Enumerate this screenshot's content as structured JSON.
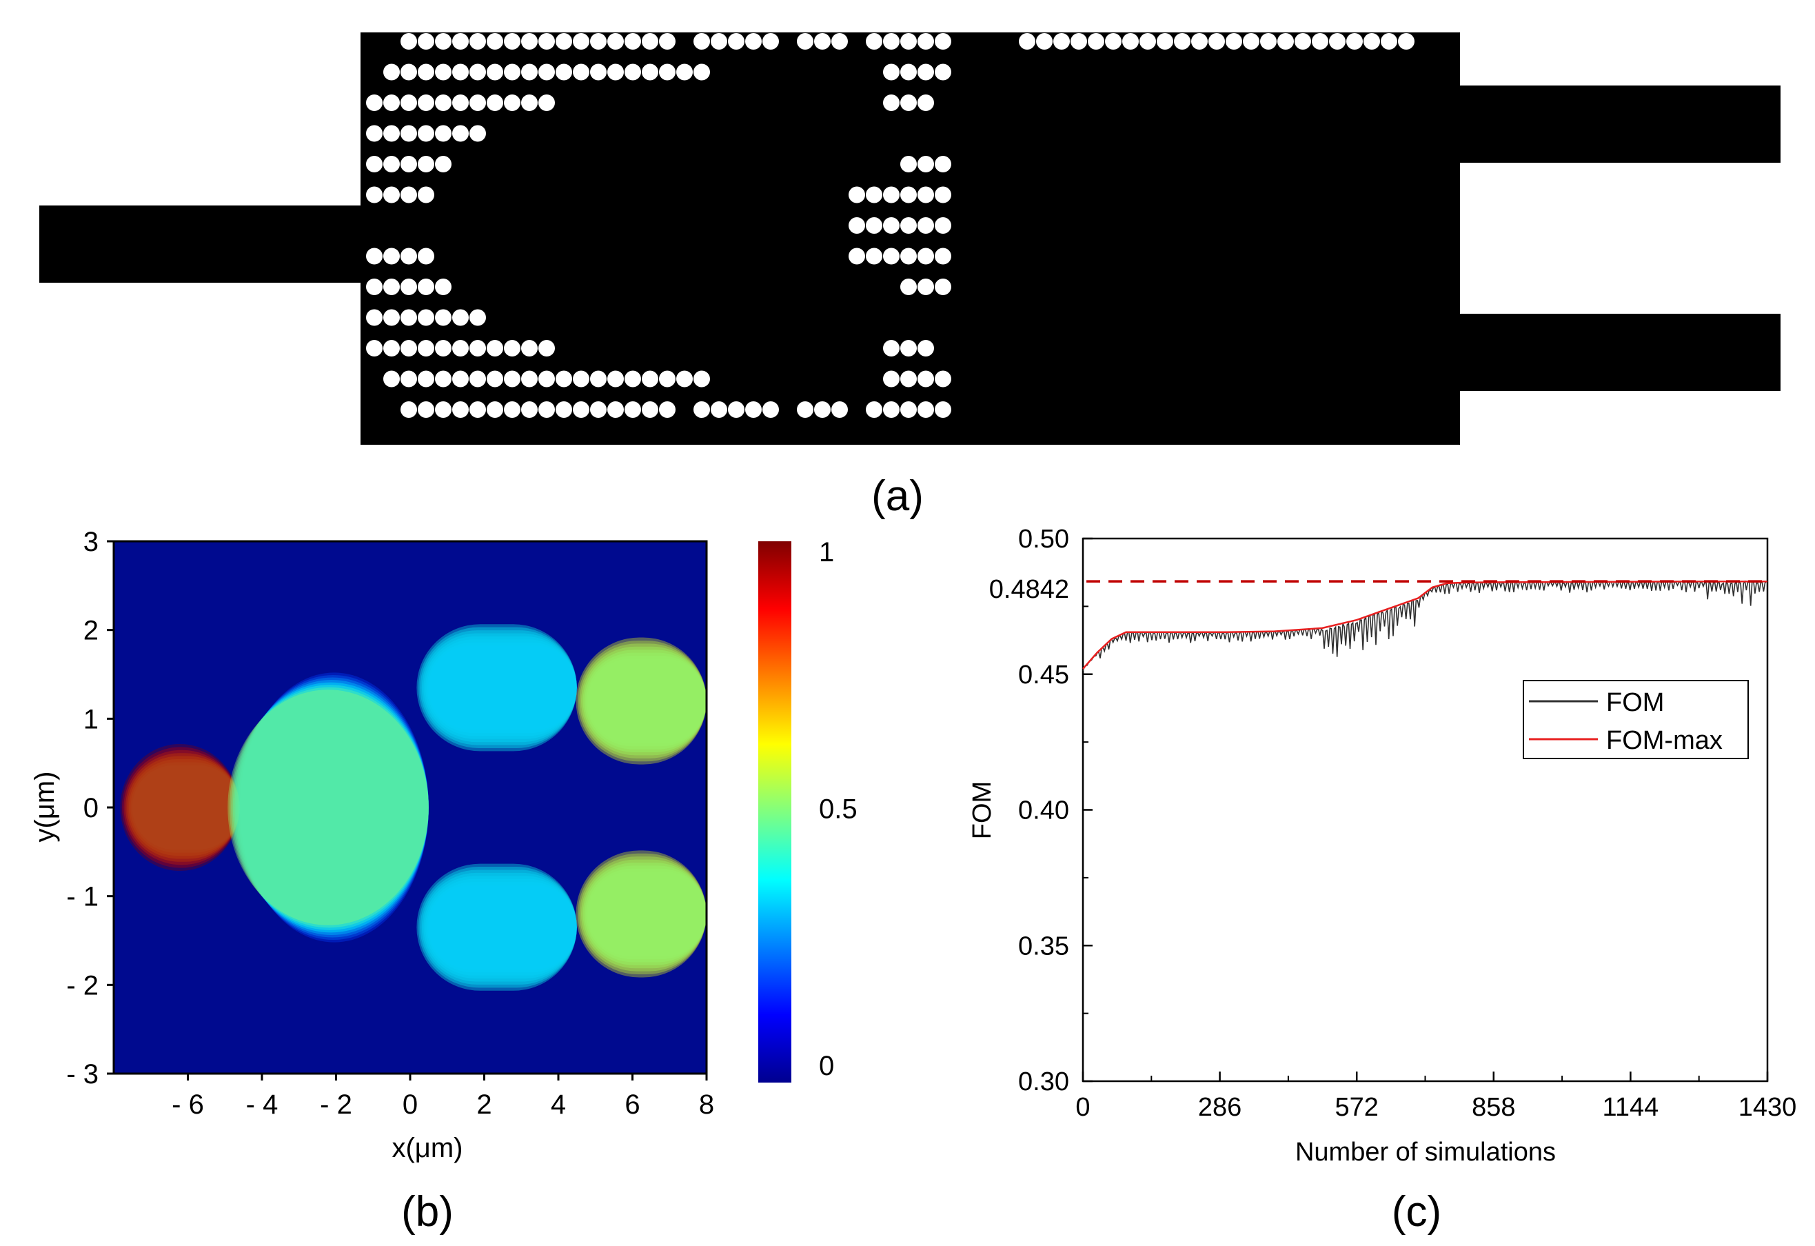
{
  "panels": {
    "a": {
      "label": "(a)"
    },
    "b": {
      "label": "(b)"
    },
    "c": {
      "label": "(c)"
    }
  },
  "chart_data": [
    {
      "panel": "a",
      "type": "other",
      "description_kind": "device topology",
      "grid_columns": 34,
      "grid_rows": 13,
      "holes_by_row": [
        [
          2,
          3,
          4,
          5,
          6,
          7,
          8,
          9,
          10,
          11,
          12,
          13,
          14,
          15,
          16,
          17,
          19,
          20,
          21,
          22,
          23,
          25,
          26,
          27,
          29,
          30,
          31,
          32,
          33,
          36,
          37,
          38,
          39,
          40,
          41,
          42,
          43,
          44,
          45,
          46,
          47,
          48,
          49,
          50,
          51,
          52,
          53,
          54,
          55,
          56,
          57,
          58
        ],
        [
          1,
          2,
          3,
          4,
          5,
          6,
          7,
          8,
          9,
          10,
          11,
          12,
          13,
          14,
          15,
          16,
          17,
          18,
          19,
          30,
          31,
          32,
          33
        ],
        [
          0,
          1,
          2,
          3,
          4,
          5,
          6,
          7,
          8,
          9,
          10,
          30,
          31,
          32
        ],
        [
          0,
          1,
          2,
          3,
          4,
          5,
          6
        ],
        [
          0,
          1,
          2,
          3,
          4,
          31,
          32,
          33
        ],
        [
          0,
          1,
          2,
          3,
          28,
          29,
          30,
          31,
          32,
          33
        ],
        [
          28,
          29,
          30,
          31,
          32,
          33
        ],
        [
          0,
          1,
          2,
          3,
          28,
          29,
          30,
          31,
          32,
          33
        ],
        [
          0,
          1,
          2,
          3,
          4,
          31,
          32,
          33
        ],
        [
          0,
          1,
          2,
          3,
          4,
          5,
          6
        ],
        [
          0,
          1,
          2,
          3,
          4,
          5,
          6,
          7,
          8,
          9,
          10,
          30,
          31,
          32
        ],
        [
          1,
          2,
          3,
          4,
          5,
          6,
          7,
          8,
          9,
          10,
          11,
          12,
          13,
          14,
          15,
          16,
          17,
          18,
          19,
          30,
          31,
          32,
          33
        ],
        [
          2,
          3,
          4,
          5,
          6,
          7,
          8,
          9,
          10,
          11,
          12,
          13,
          14,
          15,
          16,
          17,
          19,
          20,
          21,
          22,
          23,
          25,
          26,
          27,
          29,
          30,
          31,
          32,
          33
        ]
      ]
    },
    {
      "panel": "b",
      "type": "heatmap",
      "xlabel": "x(μm)",
      "ylabel": "y(μm)",
      "xlim": [
        -8,
        8
      ],
      "ylim": [
        -3,
        3
      ],
      "x_ticks": [
        "- 6",
        "- 4",
        "- 2",
        "0",
        "2",
        "4",
        "6",
        "8"
      ],
      "x_tick_values": [
        -6,
        -4,
        -2,
        0,
        2,
        4,
        6,
        8
      ],
      "y_ticks": [
        "3",
        "2",
        "1",
        "0",
        "- 1",
        "- 2",
        "- 3"
      ],
      "y_tick_values": [
        3,
        2,
        1,
        0,
        -1,
        -2,
        -3
      ],
      "colorbar_ticks": [
        "1",
        "0.5",
        "0"
      ],
      "colorbar_tick_values": [
        1,
        0.5,
        0
      ],
      "colorbar_range": [
        0,
        1
      ],
      "field_components": [
        {
          "name": "input",
          "x0": -7.5,
          "x1": -4.6,
          "y": 0,
          "amp": 1.0
        },
        {
          "name": "taper",
          "x0": -4.6,
          "x1": 0.5,
          "y": 0,
          "amp": 0.45
        },
        {
          "name": "branch-upper",
          "x0": 0.5,
          "x1": 4.5,
          "y": 1.35,
          "amp": 0.3
        },
        {
          "name": "branch-lower",
          "x0": 0.5,
          "x1": 4.5,
          "y": -1.35,
          "amp": 0.3
        },
        {
          "name": "output-upper",
          "x0": 4.8,
          "x1": 8,
          "y": 1.2,
          "amp": 0.55
        },
        {
          "name": "output-lower",
          "x0": 4.8,
          "x1": 8,
          "y": -1.2,
          "amp": 0.55
        }
      ]
    },
    {
      "panel": "c",
      "type": "line",
      "xlabel": "Number of simulations",
      "ylabel": "FOM",
      "xlim": [
        0,
        1430
      ],
      "ylim": [
        0.3,
        0.5
      ],
      "x_ticks": [
        "0",
        "286",
        "572",
        "858",
        "1144",
        "1430"
      ],
      "x_tick_values": [
        0,
        286,
        572,
        858,
        1144,
        1430
      ],
      "y_ticks": [
        "0.50",
        "0.45",
        "0.40",
        "0.35",
        "0.30"
      ],
      "y_tick_values": [
        0.5,
        0.45,
        0.4,
        0.35,
        0.3
      ],
      "reference_line": {
        "value": 0.4842,
        "label": "0.4842",
        "color": "#c00000",
        "style": "dashed"
      },
      "legend": {
        "placement": "right-middle",
        "entries": [
          "FOM",
          "FOM-max"
        ]
      },
      "series": [
        {
          "name": "FOM-max",
          "color": "#e82020",
          "x": [
            0,
            30,
            60,
            90,
            120,
            200,
            300,
            400,
            500,
            572,
            620,
            660,
            700,
            730,
            760,
            800,
            858,
            1000,
            1144,
            1300,
            1430
          ],
          "y": [
            0.452,
            0.458,
            0.463,
            0.4655,
            0.4655,
            0.4655,
            0.4655,
            0.4658,
            0.467,
            0.47,
            0.473,
            0.4755,
            0.478,
            0.482,
            0.4835,
            0.4838,
            0.4839,
            0.484,
            0.4841,
            0.4842,
            0.4842
          ]
        },
        {
          "name": "FOM",
          "color": "#303030",
          "dip_regions": [
            {
              "x0": 30,
              "x1": 500,
              "depth": 0.004
            },
            {
              "x0": 500,
              "x1": 700,
              "depth": 0.012
            },
            {
              "x0": 700,
              "x1": 1300,
              "depth": 0.004
            },
            {
              "x0": 1300,
              "x1": 1430,
              "depth": 0.009
            }
          ]
        }
      ]
    }
  ]
}
